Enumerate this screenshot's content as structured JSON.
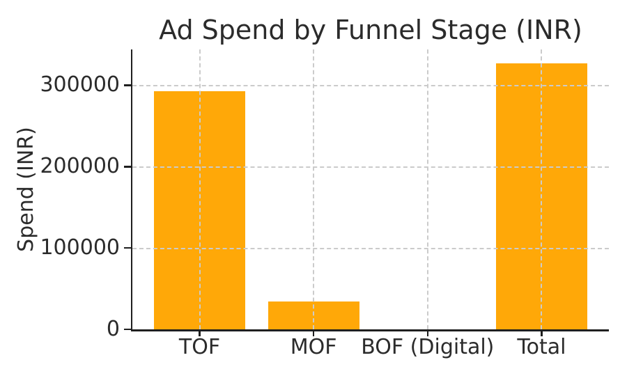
{
  "chart_data": {
    "type": "bar",
    "title": "Ad Spend by Funnel Stage (INR)",
    "xlabel": "",
    "ylabel": "Spend (INR)",
    "categories": [
      "TOF",
      "MOF",
      "BOF (Digital)",
      "Total"
    ],
    "values": [
      293000,
      34000,
      0,
      327000
    ],
    "ytick_labels": [
      "0",
      "100000",
      "200000",
      "300000"
    ],
    "ytick_values": [
      0,
      100000,
      200000,
      300000
    ],
    "ylim": [
      0,
      344000
    ],
    "grid": true,
    "grid_style": "dashed",
    "legend_position": "none",
    "colors": {
      "bar": "#ffa808",
      "grid": "#cbcbcb",
      "spine": "#1f1f1f",
      "text": "#2b2b2b",
      "background": "#ffffff"
    }
  }
}
